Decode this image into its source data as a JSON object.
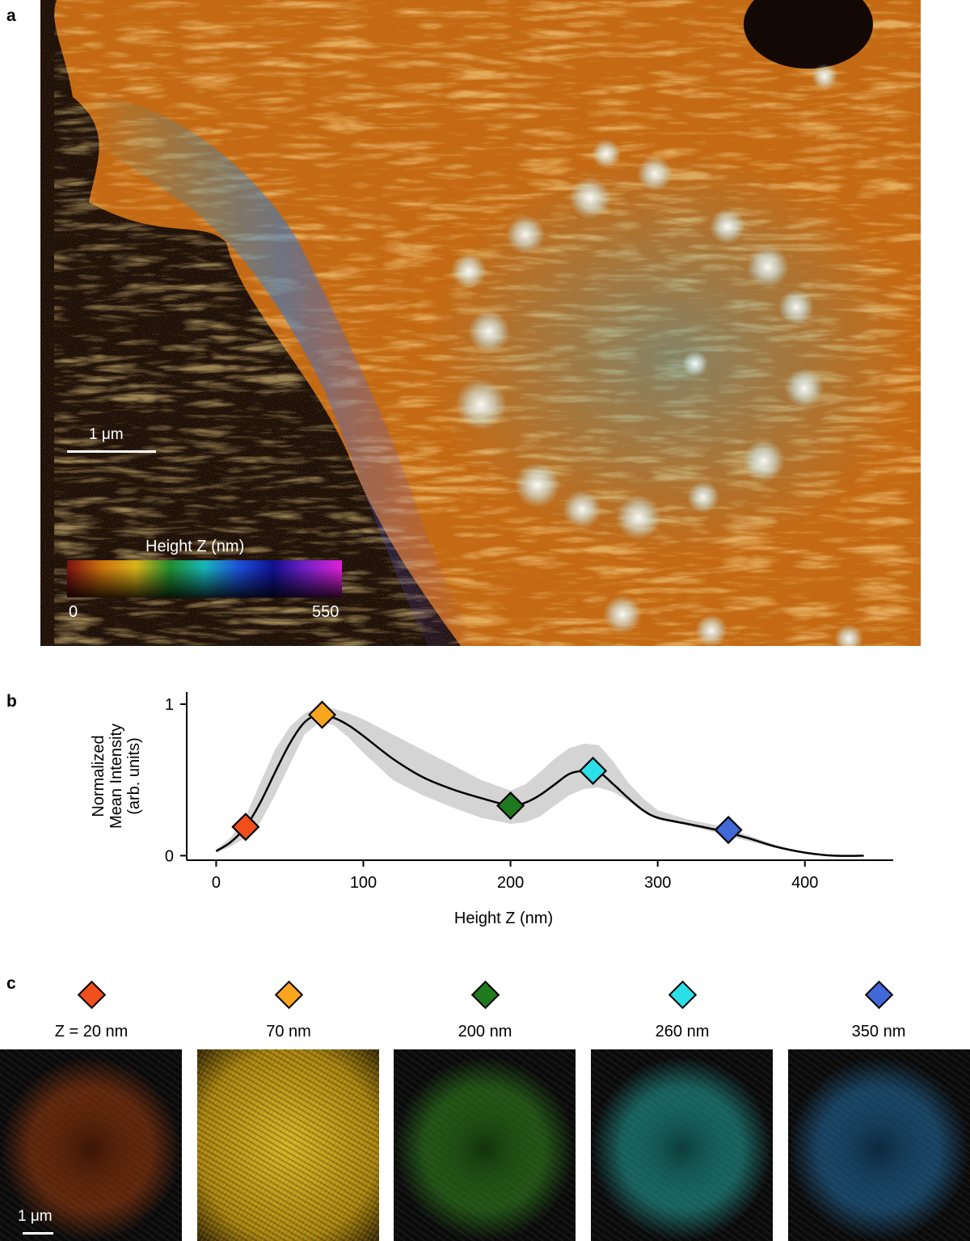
{
  "panels": {
    "a": "a",
    "b": "b",
    "c": "c"
  },
  "micrograph": {
    "scale_label": "1 μm",
    "colorbar": {
      "title": "Height Z (nm)",
      "min_label": "0",
      "max_label": "550",
      "colors": [
        "#7a1010",
        "#c8700c",
        "#d9b21a",
        "#1e8c2e",
        "#17b3b8",
        "#1c4fd8",
        "#101090",
        "#7a20c8",
        "#e020d8"
      ]
    }
  },
  "chart_data": {
    "type": "line",
    "xlabel": "Height Z (nm)",
    "ylabel_lines": [
      "Normalized",
      "Mean Intensity",
      "(arb. units)"
    ],
    "xlim": [
      -20,
      460
    ],
    "ylim": [
      -0.03,
      1.08
    ],
    "xticks": [
      0,
      100,
      200,
      300,
      400
    ],
    "yticks": [
      0,
      1
    ],
    "line": {
      "x": [
        0,
        10,
        20,
        30,
        40,
        50,
        60,
        70,
        80,
        90,
        100,
        120,
        140,
        160,
        180,
        200,
        210,
        220,
        230,
        240,
        250,
        260,
        270,
        280,
        290,
        300,
        320,
        340,
        360,
        380,
        400,
        420,
        440
      ],
      "y": [
        0.03,
        0.09,
        0.19,
        0.35,
        0.55,
        0.74,
        0.88,
        0.93,
        0.91,
        0.86,
        0.79,
        0.64,
        0.52,
        0.44,
        0.38,
        0.33,
        0.35,
        0.4,
        0.47,
        0.54,
        0.56,
        0.55,
        0.47,
        0.38,
        0.3,
        0.25,
        0.21,
        0.17,
        0.12,
        0.06,
        0.02,
        0.0,
        0.0
      ]
    },
    "band": {
      "x": [
        0,
        10,
        20,
        30,
        40,
        50,
        60,
        70,
        80,
        90,
        100,
        120,
        140,
        160,
        180,
        200,
        210,
        220,
        230,
        240,
        250,
        260,
        270,
        280,
        290,
        300,
        320,
        340,
        360,
        380,
        400,
        420,
        440
      ],
      "lower": [
        0.02,
        0.06,
        0.12,
        0.22,
        0.4,
        0.6,
        0.8,
        0.88,
        0.86,
        0.78,
        0.68,
        0.5,
        0.4,
        0.32,
        0.25,
        0.21,
        0.22,
        0.26,
        0.33,
        0.4,
        0.44,
        0.45,
        0.42,
        0.36,
        0.29,
        0.24,
        0.2,
        0.15,
        0.1,
        0.05,
        0.015,
        0.0,
        0.0
      ],
      "upper": [
        0.04,
        0.12,
        0.26,
        0.48,
        0.7,
        0.85,
        0.94,
        0.98,
        0.97,
        0.94,
        0.9,
        0.8,
        0.7,
        0.6,
        0.5,
        0.43,
        0.47,
        0.55,
        0.64,
        0.71,
        0.74,
        0.73,
        0.62,
        0.48,
        0.38,
        0.3,
        0.24,
        0.2,
        0.14,
        0.07,
        0.025,
        0.0,
        0.0
      ]
    },
    "markers": [
      {
        "x": 20,
        "y": 0.19,
        "color": "#f04e1a"
      },
      {
        "x": 72,
        "y": 0.93,
        "color": "#f9a51e"
      },
      {
        "x": 200,
        "y": 0.33,
        "color": "#1f7a1f"
      },
      {
        "x": 256,
        "y": 0.56,
        "color": "#2be0e8"
      },
      {
        "x": 348,
        "y": 0.17,
        "color": "#4169d8"
      }
    ]
  },
  "slices": [
    {
      "label": "Z = 20 nm",
      "color": "#f04e1a",
      "tint": "#c84a10"
    },
    {
      "label": "70 nm",
      "color": "#f9a51e",
      "tint": "#d8b21e"
    },
    {
      "label": "200 nm",
      "color": "#1f7a1f",
      "tint": "#3fae24"
    },
    {
      "label": "260 nm",
      "color": "#2be0e8",
      "tint": "#2ad0c8"
    },
    {
      "label": "350 nm",
      "color": "#4169d8",
      "tint": "#2a8ad0"
    }
  ],
  "slice_scale_label": "1 μm"
}
